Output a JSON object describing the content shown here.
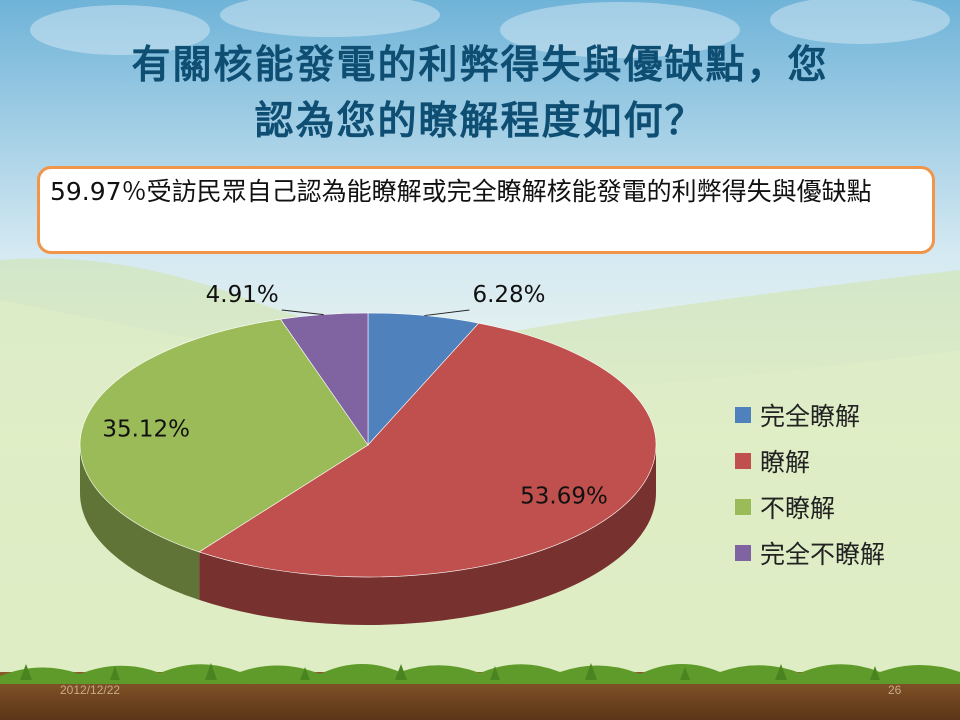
{
  "slide": {
    "title_line1": "有關核能發電的利弊得失與優缺點，您",
    "title_line2": "認為您的瞭解程度如何？",
    "callout_text": "59.97％受訪民眾自己認為能瞭解或完全瞭解核能發電的利弊得失與優缺點",
    "footer_date": "2012/12/22",
    "page_number": "26"
  },
  "colors": {
    "title": "#0f4e73",
    "callout_border": "#f0954a"
  },
  "chart_data": {
    "type": "pie",
    "title": "",
    "categories": [
      "完全瞭解",
      "瞭解",
      "不瞭解",
      "完全不瞭解"
    ],
    "values": [
      6.28,
      53.69,
      35.12,
      4.91
    ],
    "labels": [
      "6.28%",
      "53.69%",
      "35.12%",
      "4.91%"
    ],
    "colors": [
      "#4f81bd",
      "#c0504d",
      "#9bbb59",
      "#8064a2"
    ],
    "legend_position": "right",
    "three_d": true
  }
}
